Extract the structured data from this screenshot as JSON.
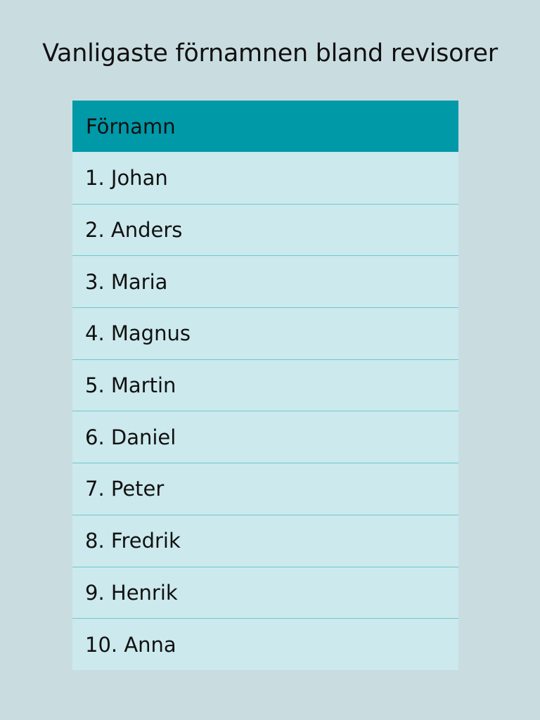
{
  "title": "Vanligaste förnamnen bland revisorer",
  "colors": {
    "background": "#c9dde1",
    "header": "#0099a8",
    "row": "#cce9ed",
    "divider": "#6fc7cf"
  },
  "table": {
    "header": "Förnamn",
    "rows": [
      "1. Johan",
      "2. Anders",
      "3. Maria",
      "4. Magnus",
      "5. Martin",
      "6. Daniel",
      "7. Peter",
      "8. Fredrik",
      "9. Henrik",
      "10. Anna"
    ]
  }
}
